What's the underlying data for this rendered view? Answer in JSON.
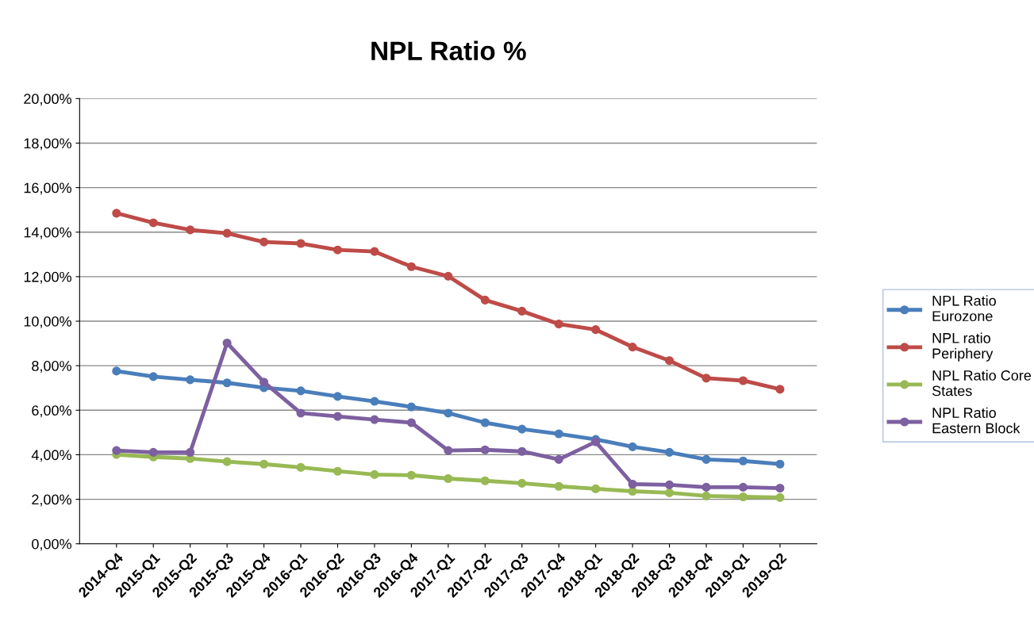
{
  "chart_data": {
    "type": "line",
    "title": "NPL Ratio %",
    "categories": [
      "2014-Q4",
      "2015-Q1",
      "2015-Q2",
      "2015-Q3",
      "2015-Q4",
      "2016-Q1",
      "2016-Q2",
      "2016-Q3",
      "2016-Q4",
      "2017-Q1",
      "2017-Q2",
      "2017-Q3",
      "2017-Q4",
      "2018-Q1",
      "2018-Q2",
      "2018-Q3",
      "2018-Q4",
      "2019-Q1",
      "2019-Q2"
    ],
    "series": [
      {
        "name": "NPL Ratio Eurozone",
        "color": "#4a7ebb",
        "values": [
          7.76,
          7.51,
          7.37,
          7.23,
          7.01,
          6.87,
          6.62,
          6.4,
          6.15,
          5.87,
          5.44,
          5.15,
          4.94,
          4.69,
          4.36,
          4.11,
          3.79,
          3.72,
          3.58
        ]
      },
      {
        "name": "NPL ratio Periphery",
        "color": "#be4b48",
        "values": [
          14.85,
          14.42,
          14.1,
          13.95,
          13.56,
          13.49,
          13.2,
          13.13,
          12.45,
          12.02,
          10.95,
          10.45,
          9.87,
          9.62,
          8.84,
          8.23,
          7.44,
          7.33,
          6.94
        ]
      },
      {
        "name": "NPL Ratio Core States",
        "color": "#98b954",
        "values": [
          4.01,
          3.9,
          3.83,
          3.69,
          3.58,
          3.43,
          3.26,
          3.11,
          3.08,
          2.93,
          2.83,
          2.72,
          2.58,
          2.47,
          2.36,
          2.29,
          2.15,
          2.11,
          2.08
        ]
      },
      {
        "name": "NPL Ratio Eastern Block",
        "color": "#7d60a0",
        "values": [
          4.19,
          4.11,
          4.11,
          9.02,
          7.26,
          5.87,
          5.72,
          5.58,
          5.44,
          4.19,
          4.22,
          4.15,
          3.79,
          4.58,
          2.68,
          2.65,
          2.54,
          2.54,
          2.5
        ]
      }
    ],
    "ylim": [
      0,
      20
    ],
    "yticks": [
      {
        "value": 0,
        "label": "0,00%"
      },
      {
        "value": 2,
        "label": "2,00%"
      },
      {
        "value": 4,
        "label": "4,00%"
      },
      {
        "value": 6,
        "label": "6,00%"
      },
      {
        "value": 8,
        "label": "8,00%"
      },
      {
        "value": 10,
        "label": "10,00%"
      },
      {
        "value": 12,
        "label": "12,00%"
      },
      {
        "value": 14,
        "label": "14,00%"
      },
      {
        "value": 16,
        "label": "16,00%"
      },
      {
        "value": 18,
        "label": "18,00%"
      },
      {
        "value": 20,
        "label": "20,00%"
      }
    ],
    "grid": "y",
    "legend": "right",
    "marker": "circle",
    "line_style": "solid"
  }
}
